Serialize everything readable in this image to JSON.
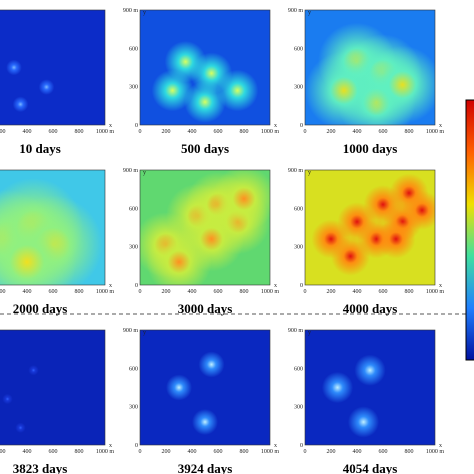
{
  "panels": [
    {
      "caption": "10 days"
    },
    {
      "caption": "500 days"
    },
    {
      "caption": "1000 days"
    },
    {
      "caption": "2000 days"
    },
    {
      "caption": "3000 days"
    },
    {
      "caption": "4000 days"
    },
    {
      "caption": "3823 days"
    },
    {
      "caption": "3924 days"
    },
    {
      "caption": "4054 days"
    }
  ],
  "axes": {
    "x_label": "x",
    "y_label": "y",
    "xticks": [
      "0",
      "200",
      "400",
      "600",
      "800",
      "1000 m"
    ],
    "yticks": [
      "0",
      "300",
      "600",
      "900 m"
    ]
  }
}
